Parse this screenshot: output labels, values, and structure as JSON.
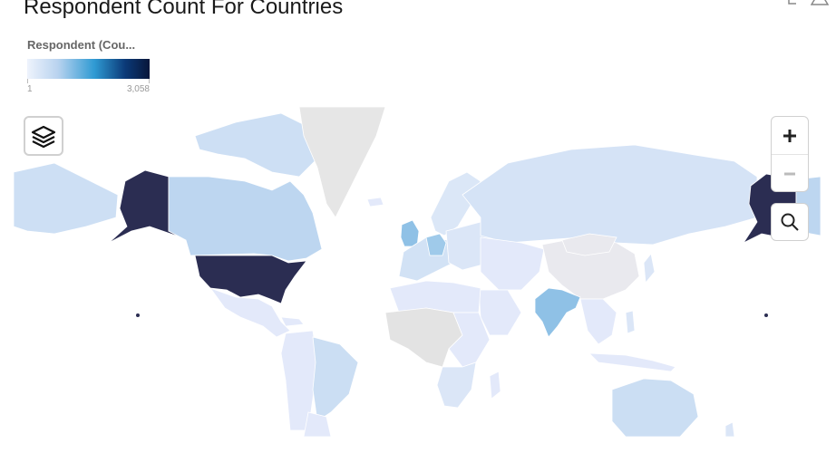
{
  "title": "Respondent Count For Countries",
  "legend": {
    "title": "Respondent (Cou...",
    "min_label": "1",
    "max_label": "3,058",
    "min_value": 1,
    "max_value": 3058
  },
  "map": {
    "projection": "mercator",
    "no_data_color": "#e6e6e6",
    "ocean_color": "#ffffff",
    "regions": [
      {
        "name": "United States",
        "level": "max"
      },
      {
        "name": "Alaska",
        "level": "max"
      },
      {
        "name": "Canada",
        "level": "light"
      },
      {
        "name": "Greenland",
        "level": "no-data"
      },
      {
        "name": "India",
        "level": "medium"
      },
      {
        "name": "United Kingdom",
        "level": "medium"
      },
      {
        "name": "Germany",
        "level": "medium"
      },
      {
        "name": "Russia",
        "level": "light"
      },
      {
        "name": "Brazil",
        "level": "light"
      },
      {
        "name": "Australia",
        "level": "light"
      },
      {
        "name": "China",
        "level": "no-data"
      }
    ]
  },
  "controls": {
    "layers_icon": "layers-icon",
    "zoom_in_icon": "plus-icon",
    "zoom_out_icon": "minus-icon",
    "search_icon": "magnifier-icon"
  }
}
